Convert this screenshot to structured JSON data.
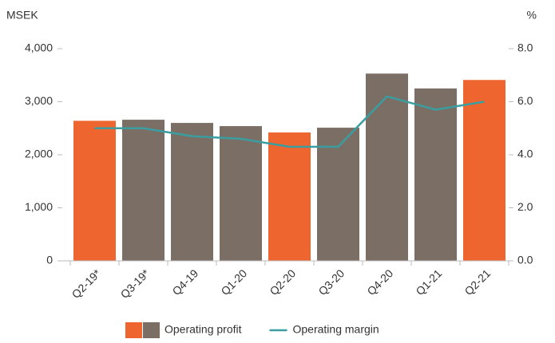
{
  "chart_data": {
    "type": "bar_line",
    "y_label": "MSEK",
    "y2_label": "%",
    "categories": [
      "Q2-19*",
      "Q3-19*",
      "Q4-19",
      "Q1-20",
      "Q2-20",
      "Q3-20",
      "Q4-20",
      "Q1-21",
      "Q2-21"
    ],
    "series": [
      {
        "name": "Operating profit",
        "type": "bar",
        "colors": [
          "#ef6530",
          "#7b6e65",
          "#7b6e65",
          "#7b6e65",
          "#ef6530",
          "#7b6e65",
          "#7b6e65",
          "#7b6e65",
          "#ef6530"
        ],
        "values": [
          2640,
          2660,
          2600,
          2540,
          2420,
          2510,
          3530,
          3250,
          3410
        ]
      },
      {
        "name": "Operating margin",
        "type": "line",
        "axis": "y2",
        "color": "#3a9ea1",
        "values": [
          5.0,
          5.0,
          4.7,
          4.6,
          4.3,
          4.3,
          6.2,
          5.7,
          6.0
        ]
      }
    ],
    "ylim": [
      0,
      4000
    ],
    "yticks": [
      0,
      {
        "value": 1000,
        "label": "1,000"
      },
      {
        "value": 2000,
        "label": "2,000"
      },
      {
        "value": 3000,
        "label": "3,000"
      },
      {
        "value": 4000,
        "label": "4,000"
      }
    ],
    "y2lim": [
      0,
      8
    ],
    "y2ticks": [
      {
        "value": 0,
        "label": "0.0"
      },
      {
        "value": 2,
        "label": "2.0"
      },
      {
        "value": 4,
        "label": "4.0"
      },
      {
        "value": 6,
        "label": "6.0"
      },
      {
        "value": 8,
        "label": "8.0"
      }
    ],
    "grid": false
  }
}
